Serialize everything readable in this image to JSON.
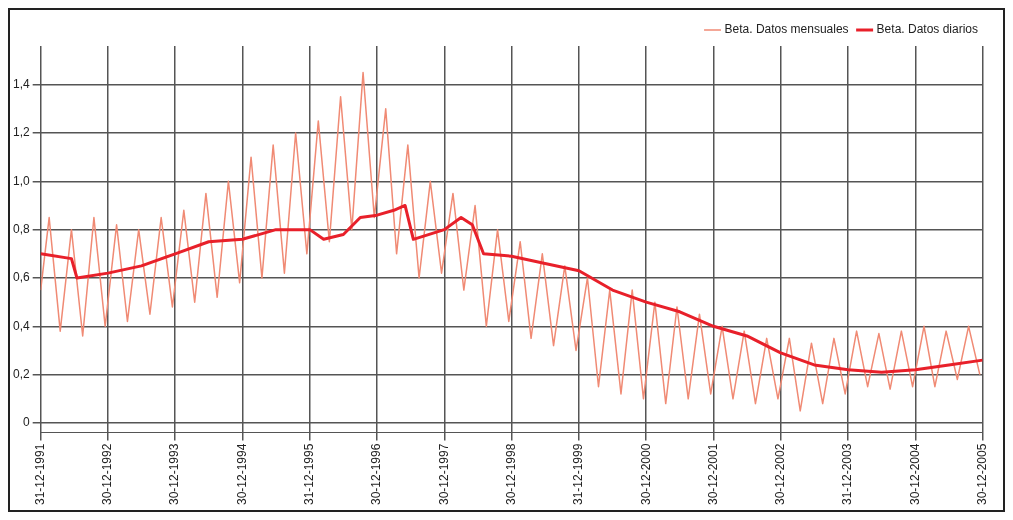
{
  "chart_data": {
    "type": "line",
    "legend": "top right",
    "grid": true,
    "marker": "none",
    "line_style": "solid",
    "xlim": [
      "1991-12-31",
      "2005-12-30"
    ],
    "xticks": [
      {
        "value": "1991-12-31",
        "label": "31-12-1991"
      },
      {
        "value": "1992-12-30",
        "label": "30-12-1992"
      },
      {
        "value": "1993-12-30",
        "label": "30-12-1993"
      },
      {
        "value": "1994-12-30",
        "label": "30-12-1994"
      },
      {
        "value": "1995-12-31",
        "label": "31-12-1995"
      },
      {
        "value": "1996-12-30",
        "label": "30-12-1996"
      },
      {
        "value": "1997-12-30",
        "label": "30-12-1997"
      },
      {
        "value": "1998-12-30",
        "label": "30-12-1998"
      },
      {
        "value": "1999-12-31",
        "label": "31-12-1999"
      },
      {
        "value": "2000-12-30",
        "label": "30-12-2000"
      },
      {
        "value": "2001-12-30",
        "label": "30-12-2001"
      },
      {
        "value": "2002-12-30",
        "label": "30-12-2002"
      },
      {
        "value": "2003-12-31",
        "label": "31-12-2003"
      },
      {
        "value": "2004-12-30",
        "label": "30-12-2004"
      },
      {
        "value": "2005-12-30",
        "label": "30-12-2005"
      }
    ],
    "ylim": [
      -0.04,
      1.56
    ],
    "yticks": [
      0,
      {
        "value": 0.2,
        "label": "0,2"
      },
      {
        "value": 0.4,
        "label": "0,4"
      },
      {
        "value": 0.6,
        "label": "0,6"
      },
      {
        "value": 0.8,
        "label": "0,8"
      },
      {
        "value": 1.0,
        "label": "1,0"
      },
      {
        "value": 1.2,
        "label": "1,2"
      },
      {
        "value": 1.4,
        "label": "1,4"
      }
    ],
    "series": [
      {
        "name": "Beta. Datos mensuales",
        "color": "#f08a74",
        "x": [
          "1991-12-31",
          "1992-02-15",
          "1992-04-15",
          "1992-06-15",
          "1992-08-15",
          "1992-10-15",
          "1992-12-15",
          "1993-02-15",
          "1993-04-15",
          "1993-06-15",
          "1993-08-15",
          "1993-10-15",
          "1993-12-15",
          "1994-02-15",
          "1994-04-15",
          "1994-06-15",
          "1994-08-15",
          "1994-10-15",
          "1994-12-15",
          "1995-02-15",
          "1995-04-15",
          "1995-06-15",
          "1995-08-15",
          "1995-10-15",
          "1995-12-15",
          "1996-02-15",
          "1996-04-15",
          "1996-06-15",
          "1996-08-15",
          "1996-10-15",
          "1996-12-15",
          "1997-02-15",
          "1997-04-15",
          "1997-06-15",
          "1997-08-15",
          "1997-10-15",
          "1997-12-15",
          "1998-02-15",
          "1998-04-15",
          "1998-06-15",
          "1998-08-15",
          "1998-10-15",
          "1998-12-15",
          "1999-02-15",
          "1999-04-15",
          "1999-06-15",
          "1999-08-15",
          "1999-10-15",
          "1999-12-15",
          "2000-02-15",
          "2000-04-15",
          "2000-06-15",
          "2000-08-15",
          "2000-10-15",
          "2000-12-15",
          "2001-02-15",
          "2001-04-15",
          "2001-06-15",
          "2001-08-15",
          "2001-10-15",
          "2001-12-15",
          "2002-02-15",
          "2002-04-15",
          "2002-06-15",
          "2002-08-15",
          "2002-10-15",
          "2002-12-15",
          "2003-02-15",
          "2003-04-15",
          "2003-06-15",
          "2003-08-15",
          "2003-10-15",
          "2003-12-15",
          "2004-02-15",
          "2004-04-15",
          "2004-06-15",
          "2004-08-15",
          "2004-10-15",
          "2004-12-15",
          "2005-02-15",
          "2005-04-15",
          "2005-06-15",
          "2005-08-15",
          "2005-10-15",
          "2005-12-15"
        ],
        "values": [
          0.55,
          0.85,
          0.38,
          0.8,
          0.36,
          0.85,
          0.4,
          0.82,
          0.42,
          0.8,
          0.45,
          0.85,
          0.48,
          0.88,
          0.5,
          0.95,
          0.52,
          1.0,
          0.58,
          1.1,
          0.6,
          1.15,
          0.62,
          1.2,
          0.7,
          1.25,
          0.75,
          1.35,
          0.8,
          1.45,
          0.85,
          1.3,
          0.7,
          1.15,
          0.6,
          1.0,
          0.62,
          0.95,
          0.55,
          0.9,
          0.4,
          0.8,
          0.42,
          0.75,
          0.35,
          0.7,
          0.32,
          0.65,
          0.3,
          0.6,
          0.15,
          0.55,
          0.12,
          0.55,
          0.1,
          0.5,
          0.08,
          0.48,
          0.1,
          0.45,
          0.12,
          0.4,
          0.1,
          0.38,
          0.08,
          0.35,
          0.1,
          0.35,
          0.05,
          0.33,
          0.08,
          0.35,
          0.12,
          0.38,
          0.15,
          0.37,
          0.14,
          0.38,
          0.15,
          0.4,
          0.15,
          0.38,
          0.18,
          0.4,
          0.2
        ]
      },
      {
        "name": "Beta. Datos diarios",
        "color": "#e8202a",
        "x": [
          "1991-12-31",
          "1992-06-15",
          "1992-07-15",
          "1992-12-30",
          "1993-06-30",
          "1993-12-30",
          "1994-06-30",
          "1994-12-30",
          "1995-06-30",
          "1995-12-31",
          "1996-03-15",
          "1996-06-30",
          "1996-09-30",
          "1996-12-30",
          "1997-03-31",
          "1997-05-31",
          "1997-07-15",
          "1997-12-30",
          "1998-03-31",
          "1998-05-31",
          "1998-07-31",
          "1998-12-30",
          "1999-06-30",
          "1999-12-31",
          "2000-06-30",
          "2000-12-30",
          "2001-06-30",
          "2001-12-30",
          "2002-06-30",
          "2002-12-30",
          "2003-06-30",
          "2003-12-31",
          "2004-06-30",
          "2004-12-30",
          "2005-06-30",
          "2005-12-30"
        ],
        "values": [
          0.7,
          0.68,
          0.6,
          0.62,
          0.65,
          0.7,
          0.75,
          0.76,
          0.8,
          0.8,
          0.76,
          0.78,
          0.85,
          0.86,
          0.88,
          0.9,
          0.76,
          0.8,
          0.85,
          0.82,
          0.7,
          0.69,
          0.66,
          0.63,
          0.55,
          0.5,
          0.46,
          0.4,
          0.36,
          0.29,
          0.24,
          0.22,
          0.21,
          0.22,
          0.24,
          0.26
        ]
      }
    ]
  }
}
